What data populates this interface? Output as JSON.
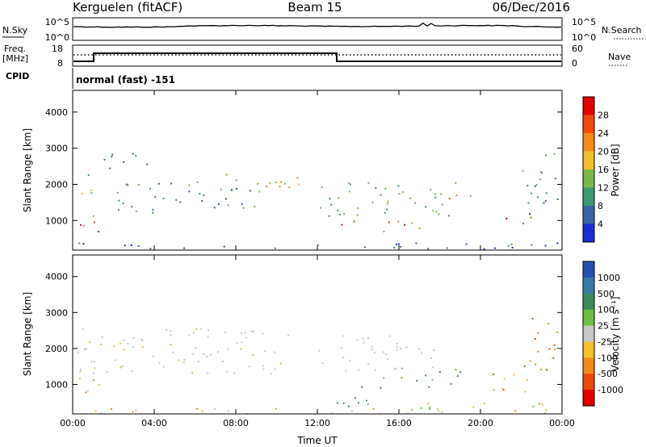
{
  "header": {
    "station": "Kerguelen (fitACF)",
    "beam": "Beam 15",
    "date": "06/Dec/2016"
  },
  "top_panels": {
    "nsky_label": "N.Sky",
    "nsearch_label": "N.Search",
    "noise_ticks_left": [
      "10^5",
      "10^0"
    ],
    "noise_ticks_right": [
      "10^5",
      "10^0"
    ],
    "freq_label_1": "Freq.",
    "freq_label_2": "[MHz]",
    "freq_ticks": [
      "18",
      "8"
    ],
    "nave_label": "Nave",
    "nave_ticks": [
      "60",
      "0"
    ],
    "cpid_label": "CPID",
    "cpid_text": "normal (fast) -151"
  },
  "chart_data": [
    {
      "type": "heatmap",
      "name": "power",
      "ylabel": "Slant Range [km]",
      "yticks": [
        "4000",
        "3000",
        "2000",
        "1000"
      ],
      "ytick_values": [
        4000,
        3000,
        2000,
        1000
      ],
      "ylim": [
        180,
        4600
      ],
      "xlim_hours": [
        0,
        24
      ],
      "colorbar": {
        "label": "Power [dB]",
        "ticks": [
          "28",
          "24",
          "20",
          "16",
          "12",
          "8",
          "4"
        ],
        "colors": [
          "#e00000",
          "#f04a10",
          "#f58a20",
          "#f0c030",
          "#7ab84a",
          "#3c9870",
          "#3a63a8",
          "#1a2ed0"
        ]
      }
    },
    {
      "type": "heatmap",
      "name": "velocity",
      "ylabel": "Slant Range [km]",
      "yticks": [
        "4000",
        "3000",
        "2000",
        "1000"
      ],
      "ytick_values": [
        4000,
        3000,
        2000,
        1000
      ],
      "ylim": [
        180,
        4600
      ],
      "xlim_hours": [
        0,
        24
      ],
      "xlabel": "Time UT",
      "xticks": [
        "00:00",
        "04:00",
        "08:00",
        "12:00",
        "16:00",
        "20:00",
        "00:00"
      ],
      "xtick_values": [
        0,
        4,
        8,
        12,
        16,
        20,
        24
      ],
      "colorbar": {
        "label": "Velocity [m s⁻¹]",
        "ticks": [
          "1000",
          "500",
          "100",
          "25",
          "-25",
          "-100",
          "-500",
          "-1000"
        ],
        "colors": [
          "#2550b0",
          "#3a7aa8",
          "#3e8a5a",
          "#6ec040",
          "#c8c8c8",
          "#f5c030",
          "#f08a20",
          "#e84a10",
          "#e00000"
        ]
      }
    }
  ]
}
